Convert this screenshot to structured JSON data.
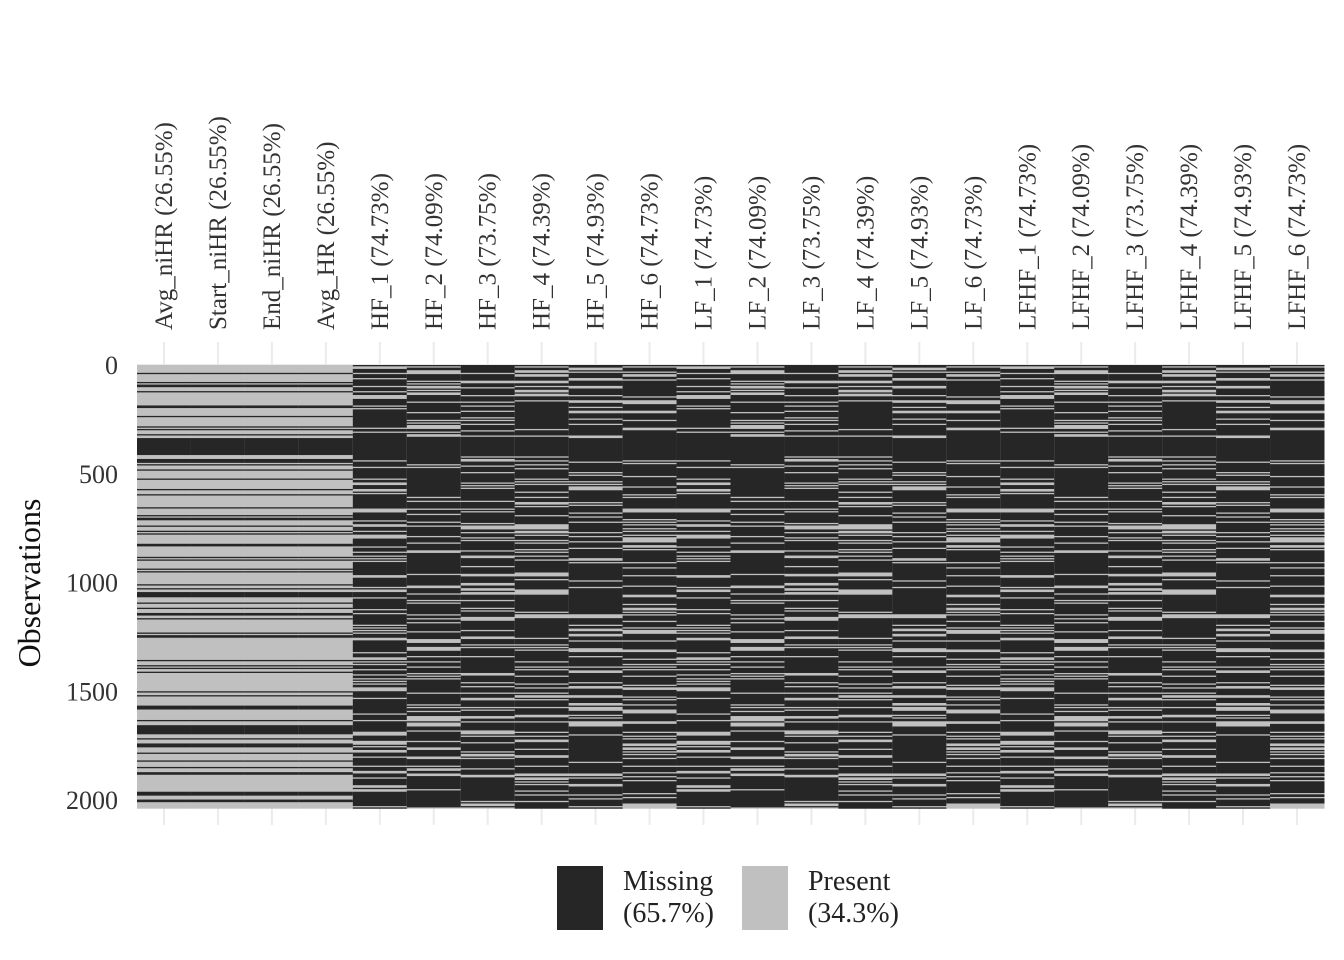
{
  "chart_data": {
    "type": "heatmap",
    "title": "",
    "xlabel": "",
    "ylabel": "Observations",
    "n_observations": 2040,
    "ylim": [
      0,
      2040
    ],
    "y_ticks": [
      0,
      500,
      1000,
      1500,
      2000
    ],
    "grid": true,
    "legend_position": "bottom",
    "colors": {
      "missing": "#262626",
      "present": "#c0c0c0"
    },
    "columns": [
      {
        "label": "Avg_niHR (26.55%)",
        "missing_pct": 26.55
      },
      {
        "label": "Start_niHR (26.55%)",
        "missing_pct": 26.55
      },
      {
        "label": "End_niHR (26.55%)",
        "missing_pct": 26.55
      },
      {
        "label": "Avg_HR (26.55%)",
        "missing_pct": 26.55
      },
      {
        "label": "HF_1 (74.73%)",
        "missing_pct": 74.73
      },
      {
        "label": "HF_2 (74.09%)",
        "missing_pct": 74.09
      },
      {
        "label": "HF_3 (73.75%)",
        "missing_pct": 73.75
      },
      {
        "label": "HF_4 (74.39%)",
        "missing_pct": 74.39
      },
      {
        "label": "HF_5 (74.93%)",
        "missing_pct": 74.93
      },
      {
        "label": "HF_6 (74.73%)",
        "missing_pct": 74.73
      },
      {
        "label": "LF_1 (74.73%)",
        "missing_pct": 74.73
      },
      {
        "label": "LF_2 (74.09%)",
        "missing_pct": 74.09
      },
      {
        "label": "LF_3 (73.75%)",
        "missing_pct": 73.75
      },
      {
        "label": "LF_4 (74.39%)",
        "missing_pct": 74.39
      },
      {
        "label": "LF_5 (74.93%)",
        "missing_pct": 74.93
      },
      {
        "label": "LF_6 (74.73%)",
        "missing_pct": 74.73
      },
      {
        "label": "LFHF_1 (74.73%)",
        "missing_pct": 74.73
      },
      {
        "label": "LFHF_2 (74.09%)",
        "missing_pct": 74.09
      },
      {
        "label": "LFHF_3 (73.75%)",
        "missing_pct": 73.75
      },
      {
        "label": "LFHF_4 (74.39%)",
        "missing_pct": 74.39
      },
      {
        "label": "LFHF_5 (74.93%)",
        "missing_pct": 74.93
      },
      {
        "label": "LFHF_6 (74.73%)",
        "missing_pct": 74.73
      }
    ],
    "common_missing_blocks": [
      [
        335,
        410
      ],
      [
        770,
        780
      ],
      [
        1375,
        1385
      ],
      [
        1660,
        1680
      ]
    ],
    "legend": [
      {
        "key": "missing",
        "line1": "Missing",
        "line2": "(65.7%)"
      },
      {
        "key": "present",
        "line1": "Present",
        "line2": "(34.3%)"
      }
    ]
  }
}
